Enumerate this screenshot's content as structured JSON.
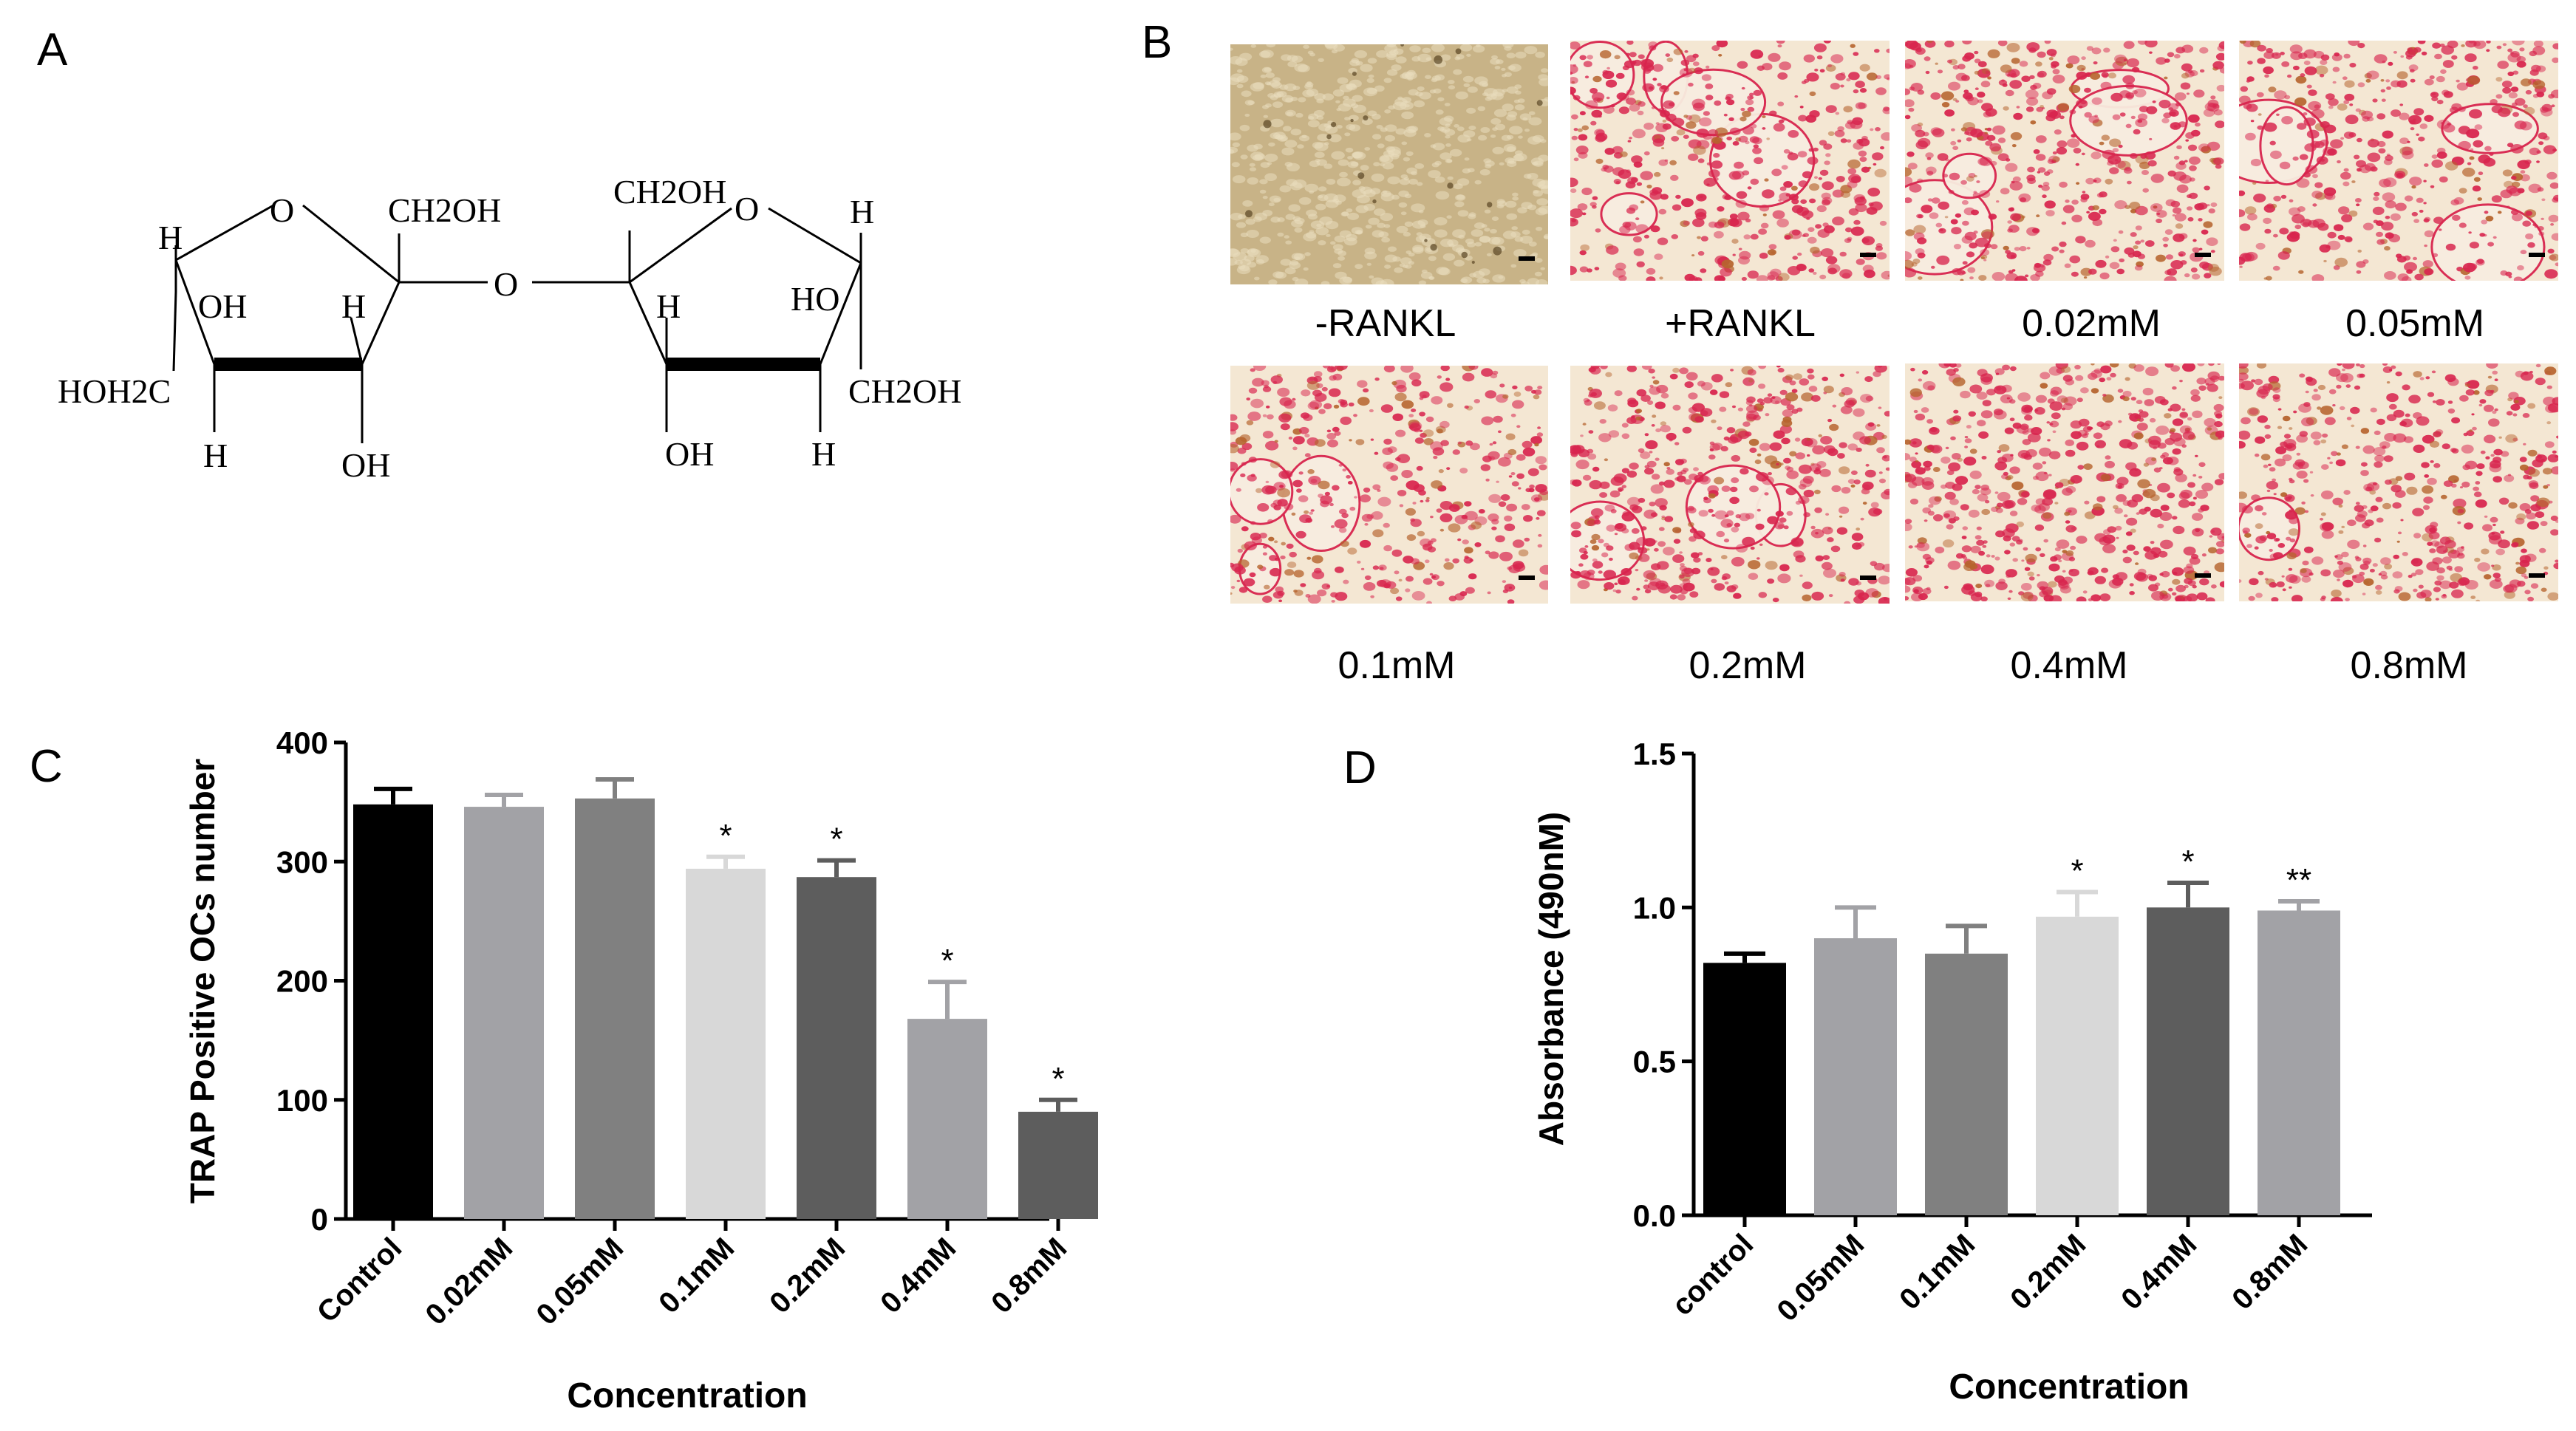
{
  "panel_letters": [
    "A",
    "B",
    "C",
    "D"
  ],
  "structure": {
    "labels": [
      "H",
      "O",
      "CH2OH",
      "OH",
      "H",
      "HOH2C",
      "H",
      "OH",
      "O",
      "CH2OH",
      "O",
      "H",
      "H",
      "HO",
      "CH2OH",
      "OH",
      "H"
    ]
  },
  "micrographs": {
    "labels": [
      "-RANKL",
      "+RANKL",
      "0.02mM",
      "0.05mM",
      "0.1mM",
      "0.2mM",
      "0.4mM",
      "0.8mM"
    ],
    "colors": {
      "unstained": "#c8b387",
      "stain_bg": "#f4e7d3",
      "stain": "#d8254e"
    }
  },
  "chart_data": [
    {
      "type": "bar",
      "panel": "C",
      "xlabel": "Concentration",
      "ylabel": "TRAP Positive OCs number",
      "ylim": [
        0,
        400
      ],
      "yticks": [
        0,
        100,
        200,
        300,
        400
      ],
      "categories": [
        "Control",
        "0.02mM",
        "0.05mM",
        "0.1mM",
        "0.2mM",
        "0.4mM",
        "0.8mM"
      ],
      "values": [
        348,
        346,
        353,
        294,
        287,
        168,
        90
      ],
      "errors": [
        13,
        10,
        16,
        10,
        14,
        31,
        10
      ],
      "significance": [
        "",
        "",
        "",
        "*",
        "*",
        "*",
        "*"
      ],
      "colors": [
        "#000000",
        "#a2a2a6",
        "#808080",
        "#d8d8d8",
        "#5d5d5d",
        "#a2a2a6",
        "#5d5d5d"
      ]
    },
    {
      "type": "bar",
      "panel": "D",
      "xlabel": "Concentration",
      "ylabel": "Absorbance (490nM)",
      "ylim": [
        0,
        1.5
      ],
      "yticks": [
        "0.0",
        "0.5",
        "1.0",
        "1.5"
      ],
      "categories": [
        "control",
        "0.05mM",
        "0.1mM",
        "0.2mM",
        "0.4mM",
        "0.8mM"
      ],
      "values": [
        0.82,
        0.9,
        0.85,
        0.97,
        1.0,
        0.99
      ],
      "errors": [
        0.03,
        0.1,
        0.09,
        0.08,
        0.08,
        0.03
      ],
      "significance": [
        "",
        "",
        "",
        "*",
        "*",
        "**"
      ],
      "colors": [
        "#000000",
        "#a2a2a6",
        "#808080",
        "#d8d8d8",
        "#5d5d5d",
        "#a2a2a6"
      ]
    }
  ]
}
